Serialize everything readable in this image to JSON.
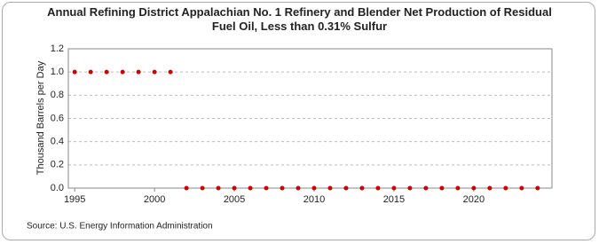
{
  "chart_data": {
    "type": "scatter",
    "title": "Annual Refining District Appalachian No. 1 Refinery and Blender Net Production of Residual Fuel Oil, Less than 0.31% Sulfur",
    "y_label": "Thousand Barrels per Day",
    "source": "Source: U.S. Energy Information Administration",
    "x": [
      1995,
      1996,
      1997,
      1998,
      1999,
      2000,
      2001,
      2002,
      2003,
      2004,
      2005,
      2006,
      2007,
      2008,
      2009,
      2010,
      2011,
      2012,
      2013,
      2014,
      2015,
      2016,
      2017,
      2018,
      2019,
      2020,
      2021,
      2022,
      2023,
      2024
    ],
    "series": [
      {
        "name": "Residual Fuel Oil, Less than 0.31% Sulfur",
        "color": "#cc0000",
        "values": [
          1,
          1,
          1,
          1,
          1,
          1,
          1,
          0,
          0,
          0,
          0,
          0,
          0,
          0,
          0,
          0,
          0,
          0,
          0,
          0,
          0,
          0,
          0,
          0,
          0,
          0,
          0,
          0,
          0,
          0
        ]
      }
    ],
    "xlim": [
      1994.6,
      2024.9
    ],
    "xticks": [
      1995,
      2000,
      2005,
      2010,
      2015,
      2020
    ],
    "ylim": [
      0,
      1.2
    ],
    "yticks": [
      {
        "value": 0,
        "label": "0.0"
      },
      0.2,
      0.4,
      0.6,
      0.8,
      {
        "value": 1,
        "label": "1.0"
      },
      1.2
    ],
    "grid": true
  }
}
